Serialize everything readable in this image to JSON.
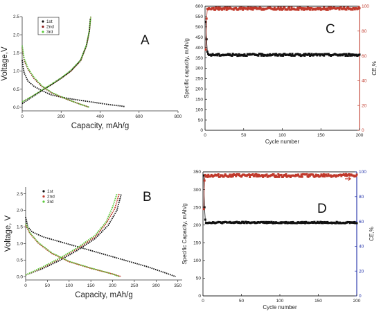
{
  "chart_data": [
    {
      "panel": "A",
      "type": "line",
      "xlabel": "Capacity, mAh/g",
      "ylabel": "Voltage,V",
      "xlim": [
        0,
        800
      ],
      "ylim": [
        -0.1,
        2.5
      ],
      "xticks": [
        0,
        200,
        400,
        600,
        800
      ],
      "yticks": [
        0.0,
        0.5,
        1.0,
        1.5,
        2.0,
        2.5
      ],
      "legend": "top-left",
      "series": [
        {
          "name": "1st",
          "color": "#111111",
          "discharge": [
            [
              0,
              1.3
            ],
            [
              10,
              0.95
            ],
            [
              30,
              0.72
            ],
            [
              60,
              0.58
            ],
            [
              100,
              0.46
            ],
            [
              150,
              0.34
            ],
            [
              200,
              0.28
            ],
            [
              250,
              0.23
            ],
            [
              300,
              0.19
            ],
            [
              350,
              0.15
            ],
            [
              400,
              0.11
            ],
            [
              450,
              0.07
            ],
            [
              500,
              0.04
            ],
            [
              525,
              0.02
            ]
          ],
          "charge": [
            [
              0,
              0.1
            ],
            [
              50,
              0.28
            ],
            [
              100,
              0.45
            ],
            [
              150,
              0.62
            ],
            [
              200,
              0.8
            ],
            [
              250,
              1.0
            ],
            [
              300,
              1.3
            ],
            [
              330,
              1.7
            ],
            [
              345,
              2.1
            ],
            [
              350,
              2.45
            ]
          ]
        },
        {
          "name": "2nd",
          "color": "#8B1A1A",
          "discharge": [
            [
              0,
              1.65
            ],
            [
              10,
              1.3
            ],
            [
              30,
              1.05
            ],
            [
              60,
              0.8
            ],
            [
              100,
              0.58
            ],
            [
              150,
              0.4
            ],
            [
              200,
              0.28
            ],
            [
              250,
              0.18
            ],
            [
              300,
              0.08
            ],
            [
              345,
              0.0
            ]
          ],
          "charge": [
            [
              0,
              0.15
            ],
            [
              50,
              0.3
            ],
            [
              100,
              0.47
            ],
            [
              150,
              0.63
            ],
            [
              200,
              0.8
            ],
            [
              250,
              1.0
            ],
            [
              300,
              1.28
            ],
            [
              330,
              1.7
            ],
            [
              345,
              2.1
            ],
            [
              352,
              2.5
            ]
          ]
        },
        {
          "name": "3rd",
          "color": "#5CC93B",
          "discharge": [
            [
              0,
              1.7
            ],
            [
              10,
              1.35
            ],
            [
              30,
              1.08
            ],
            [
              60,
              0.83
            ],
            [
              100,
              0.6
            ],
            [
              150,
              0.41
            ],
            [
              200,
              0.29
            ],
            [
              250,
              0.18
            ],
            [
              300,
              0.08
            ],
            [
              345,
              0.0
            ]
          ],
          "charge": [
            [
              0,
              0.15
            ],
            [
              50,
              0.3
            ],
            [
              100,
              0.47
            ],
            [
              150,
              0.64
            ],
            [
              200,
              0.81
            ],
            [
              250,
              1.02
            ],
            [
              300,
              1.3
            ],
            [
              330,
              1.72
            ],
            [
              345,
              2.12
            ],
            [
              352,
              2.5
            ]
          ]
        }
      ]
    },
    {
      "panel": "B",
      "type": "line",
      "xlabel": "Capacity, mAh/g",
      "ylabel": "Voltage, V",
      "xlim": [
        0,
        360
      ],
      "ylim": [
        -0.1,
        2.7
      ],
      "xticks": [
        0,
        50,
        100,
        150,
        200,
        250,
        300,
        350
      ],
      "yticks": [
        0.0,
        0.5,
        1.0,
        1.5,
        2.0,
        2.5
      ],
      "legend": "top-left",
      "series": [
        {
          "name": "1st",
          "color": "#111111",
          "discharge": [
            [
              0,
              1.8
            ],
            [
              5,
              1.5
            ],
            [
              15,
              1.35
            ],
            [
              40,
              1.2
            ],
            [
              80,
              1.05
            ],
            [
              120,
              0.9
            ],
            [
              160,
              0.75
            ],
            [
              200,
              0.6
            ],
            [
              240,
              0.45
            ],
            [
              280,
              0.3
            ],
            [
              320,
              0.12
            ],
            [
              345,
              0.0
            ]
          ],
          "charge": [
            [
              0,
              0.05
            ],
            [
              40,
              0.25
            ],
            [
              80,
              0.5
            ],
            [
              120,
              0.8
            ],
            [
              160,
              1.15
            ],
            [
              190,
              1.55
            ],
            [
              210,
              2.0
            ],
            [
              220,
              2.5
            ]
          ]
        },
        {
          "name": "2nd",
          "color": "#C0392B",
          "discharge": [
            [
              0,
              1.55
            ],
            [
              10,
              1.3
            ],
            [
              30,
              1.0
            ],
            [
              60,
              0.7
            ],
            [
              100,
              0.45
            ],
            [
              150,
              0.25
            ],
            [
              200,
              0.08
            ],
            [
              220,
              0.0
            ]
          ],
          "charge": [
            [
              0,
              0.05
            ],
            [
              40,
              0.28
            ],
            [
              80,
              0.55
            ],
            [
              120,
              0.85
            ],
            [
              160,
              1.2
            ],
            [
              185,
              1.6
            ],
            [
              205,
              2.05
            ],
            [
              215,
              2.5
            ]
          ]
        },
        {
          "name": "3rd",
          "color": "#5CC93B",
          "discharge": [
            [
              0,
              1.6
            ],
            [
              10,
              1.32
            ],
            [
              30,
              1.02
            ],
            [
              60,
              0.72
            ],
            [
              100,
              0.46
            ],
            [
              150,
              0.26
            ],
            [
              200,
              0.08
            ],
            [
              215,
              0.0
            ]
          ],
          "charge": [
            [
              0,
              0.05
            ],
            [
              40,
              0.3
            ],
            [
              80,
              0.57
            ],
            [
              120,
              0.88
            ],
            [
              160,
              1.25
            ],
            [
              185,
              1.65
            ],
            [
              200,
              2.1
            ],
            [
              210,
              2.5
            ]
          ]
        }
      ]
    },
    {
      "panel": "C",
      "type": "scatter",
      "xlabel": "Cycle number",
      "ylabel": "Specific capacity, mAh/g",
      "ylabel_right": "CE,%",
      "xlim": [
        0,
        200
      ],
      "ylim": [
        0,
        600
      ],
      "ylim_right": [
        0,
        100
      ],
      "xticks": [
        0,
        50,
        100,
        150,
        200
      ],
      "yticks": [
        0,
        50,
        100,
        150,
        200,
        250,
        300,
        350,
        400,
        450,
        500,
        550,
        600
      ],
      "yticks_right": [
        0,
        20,
        40,
        60,
        80,
        100
      ],
      "right_axis_color": "#C0392B",
      "series": [
        {
          "name": "Specific capacity",
          "axis": "left",
          "color": "#111111",
          "first": [
            [
              1,
              525
            ],
            [
              2,
              440
            ],
            [
              3,
              380
            ]
          ],
          "plateau": 365,
          "noise": 5
        },
        {
          "name": "CE",
          "axis": "right",
          "color": "#C0392B",
          "first": [
            [
              1,
              65
            ],
            [
              2,
              90
            ]
          ],
          "plateau": 98,
          "noise": 1
        }
      ]
    },
    {
      "panel": "D",
      "type": "scatter",
      "xlabel": "Cycle number",
      "ylabel": "Specific Capacity, mAh/g",
      "ylabel_right": "CE,%",
      "xlim": [
        0,
        200
      ],
      "ylim": [
        0,
        350
      ],
      "ylim_right": [
        0,
        100
      ],
      "xticks": [
        0,
        50,
        100,
        150,
        200
      ],
      "yticks": [
        0,
        50,
        100,
        150,
        200,
        250,
        300,
        350
      ],
      "yticks_right": [
        0,
        20,
        40,
        60,
        80,
        100
      ],
      "right_axis_color": "#1F2FA8",
      "series": [
        {
          "name": "Specific Capacity",
          "axis": "left",
          "color": "#111111",
          "first": [
            [
              1,
              340
            ],
            [
              2,
              250
            ],
            [
              3,
              215
            ]
          ],
          "plateau": 207,
          "noise": 2
        },
        {
          "name": "CE",
          "axis": "right",
          "color": "#C0392B",
          "first": [
            [
              1,
              70
            ],
            [
              2,
              93
            ]
          ],
          "plateau": 97,
          "noise": 1.2
        }
      ]
    }
  ]
}
